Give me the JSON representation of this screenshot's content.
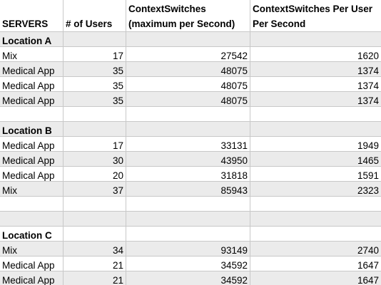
{
  "header": {
    "servers": "SERVERS",
    "users": "# of Users",
    "cs_max_line1": "ContextSwitches",
    "cs_max_line2": "(maximum per Second)",
    "cs_per_user_line1": "ContextSwitches Per User",
    "cs_per_user_line2": "Per Second"
  },
  "rows": [
    {
      "server": "Location A",
      "users": "",
      "cs_max": "",
      "cs_per_user": ""
    },
    {
      "server": "Mix",
      "users": "17",
      "cs_max": "27542",
      "cs_per_user": "1620"
    },
    {
      "server": "Medical App",
      "users": "35",
      "cs_max": "48075",
      "cs_per_user": "1374"
    },
    {
      "server": "Medical App",
      "users": "35",
      "cs_max": "48075",
      "cs_per_user": "1374"
    },
    {
      "server": "Medical App",
      "users": "35",
      "cs_max": "48075",
      "cs_per_user": "1374"
    },
    {
      "server": "",
      "users": "",
      "cs_max": "",
      "cs_per_user": ""
    },
    {
      "server": "Location B",
      "users": "",
      "cs_max": "",
      "cs_per_user": ""
    },
    {
      "server": "Medical App",
      "users": "17",
      "cs_max": "33131",
      "cs_per_user": "1949"
    },
    {
      "server": "Medical App",
      "users": "30",
      "cs_max": "43950",
      "cs_per_user": "1465"
    },
    {
      "server": "Medical App",
      "users": "20",
      "cs_max": "31818",
      "cs_per_user": "1591"
    },
    {
      "server": "Mix",
      "users": "37",
      "cs_max": "85943",
      "cs_per_user": "2323"
    },
    {
      "server": "",
      "users": "",
      "cs_max": "",
      "cs_per_user": ""
    },
    {
      "server": "",
      "users": "",
      "cs_max": "",
      "cs_per_user": ""
    },
    {
      "server": "Location C",
      "users": "",
      "cs_max": "",
      "cs_per_user": ""
    },
    {
      "server": "Mix",
      "users": "34",
      "cs_max": "93149",
      "cs_per_user": "2740"
    },
    {
      "server": "Medical App",
      "users": "21",
      "cs_max": "34592",
      "cs_per_user": "1647"
    },
    {
      "server": "Medical App",
      "users": "21",
      "cs_max": "34592",
      "cs_per_user": "1647"
    }
  ]
}
